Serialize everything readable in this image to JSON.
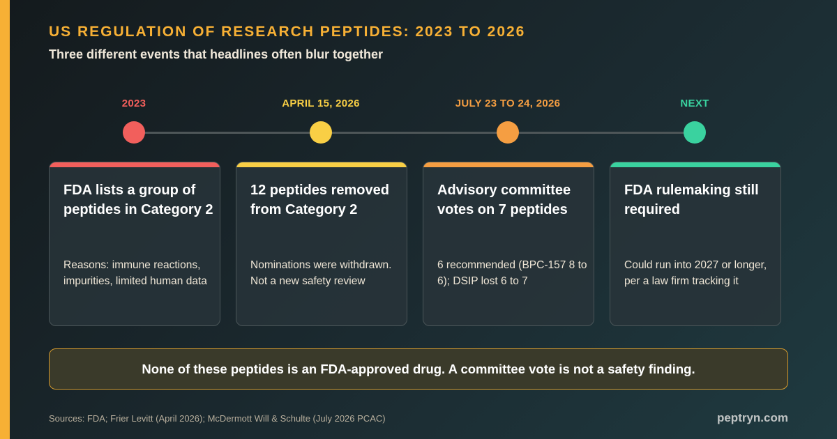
{
  "header": {
    "title": "US REGULATION OF RESEARCH PEPTIDES: 2023 TO 2026",
    "subtitle": "Three different events that headlines often blur together"
  },
  "timeline": [
    {
      "label": "2023",
      "color": "#f25f5c"
    },
    {
      "label": "APRIL 15, 2026",
      "color": "#f9cf45"
    },
    {
      "label": "JULY 23 TO 24, 2026",
      "color": "#f59e42"
    },
    {
      "label": "NEXT",
      "color": "#3ad29f"
    }
  ],
  "cards": [
    {
      "title": "FDA lists a group of peptides in Category 2",
      "body": "Reasons: immune reactions, impurities, limited human data",
      "accent": "#f25f5c"
    },
    {
      "title": "12 peptides removed from Category 2",
      "body": "Nominations were withdrawn. Not a new safety review",
      "accent": "#f9cf45"
    },
    {
      "title": "Advisory committee votes on 7 peptides",
      "body": "6 recommended (BPC-157 8 to 6); DSIP lost 6 to 7",
      "accent": "#f59e42"
    },
    {
      "title": "FDA rulemaking still required",
      "body": "Could run into 2027 or longer, per a law firm tracking it",
      "accent": "#3ad29f"
    }
  ],
  "callout": {
    "text": "None of these peptides is an FDA-approved drug. A committee vote is not a safety finding."
  },
  "footer": {
    "sources": "Sources: FDA; Frier Levitt (April 2026); McDermott Will & Schulte (July 2026 PCAC)",
    "brand": "peptryn.com"
  }
}
